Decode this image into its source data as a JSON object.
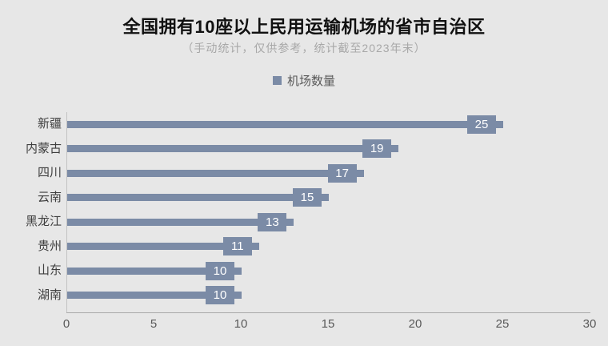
{
  "title": "全国拥有10座以上民用运输机场的省市自治区",
  "subtitle": "（手动统计，仅供参考，统计截至2023年末）",
  "legend": {
    "label": "机场数量"
  },
  "chart_data": {
    "type": "bar",
    "orientation": "horizontal",
    "title": "全国拥有10座以上民用运输机场的省市自治区",
    "subtitle": "（手动统计，仅供参考，统计截至2023年末）",
    "series_name": "机场数量",
    "categories": [
      "新疆",
      "内蒙古",
      "四川",
      "云南",
      "黑龙江",
      "贵州",
      "山东",
      "湖南"
    ],
    "values": [
      25,
      19,
      17,
      15,
      13,
      11,
      10,
      10
    ],
    "xlim": [
      0,
      30
    ],
    "x_ticks": [
      0,
      5,
      10,
      15,
      20,
      25,
      30
    ],
    "bar_color": "#7b8ba6",
    "value_label_color": "#ffffff",
    "background_color": "#e7e7e7",
    "legend_position": "top-center",
    "grid": false
  }
}
